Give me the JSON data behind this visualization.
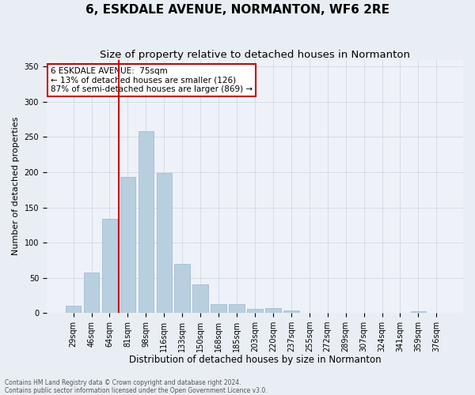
{
  "title": "6, ESKDALE AVENUE, NORMANTON, WF6 2RE",
  "subtitle": "Size of property relative to detached houses in Normanton",
  "xlabel": "Distribution of detached houses by size in Normanton",
  "ylabel": "Number of detached properties",
  "categories": [
    "29sqm",
    "46sqm",
    "64sqm",
    "81sqm",
    "98sqm",
    "116sqm",
    "133sqm",
    "150sqm",
    "168sqm",
    "185sqm",
    "203sqm",
    "220sqm",
    "237sqm",
    "255sqm",
    "272sqm",
    "289sqm",
    "307sqm",
    "324sqm",
    "341sqm",
    "359sqm",
    "376sqm"
  ],
  "values": [
    10,
    57,
    134,
    193,
    258,
    199,
    70,
    40,
    12,
    13,
    6,
    7,
    4,
    0,
    0,
    0,
    0,
    0,
    0,
    2,
    0
  ],
  "bar_color": "#b8cfe0",
  "bar_edge_color": "#9ab4c8",
  "vline_x_idx": 2.5,
  "vline_color": "#cc0000",
  "annotation_text": "6 ESKDALE AVENUE:  75sqm\n← 13% of detached houses are smaller (126)\n87% of semi-detached houses are larger (869) →",
  "ylim": [
    0,
    360
  ],
  "yticks": [
    0,
    50,
    100,
    150,
    200,
    250,
    300,
    350
  ],
  "footnote1": "Contains HM Land Registry data © Crown copyright and database right 2024.",
  "footnote2": "Contains public sector information licensed under the Open Government Licence v3.0.",
  "title_fontsize": 11,
  "subtitle_fontsize": 9.5,
  "ylabel_fontsize": 8,
  "xlabel_fontsize": 8.5,
  "tick_fontsize": 7,
  "annot_fontsize": 7.5,
  "footnote_fontsize": 5.5,
  "fig_bg_color": "#e8eef4",
  "plot_bg_color": "#eef2f8",
  "grid_color": "#d0d8e4"
}
